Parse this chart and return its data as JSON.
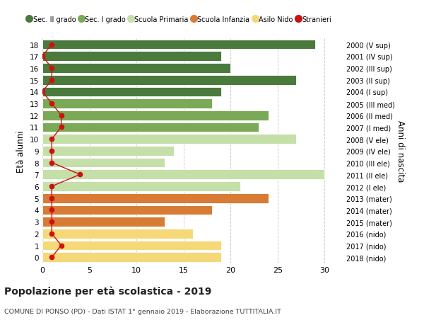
{
  "ages": [
    18,
    17,
    16,
    15,
    14,
    13,
    12,
    11,
    10,
    9,
    8,
    7,
    6,
    5,
    4,
    3,
    2,
    1,
    0
  ],
  "years": [
    "2000 (V sup)",
    "2001 (IV sup)",
    "2002 (III sup)",
    "2003 (II sup)",
    "2004 (I sup)",
    "2005 (III med)",
    "2006 (II med)",
    "2007 (I med)",
    "2008 (V ele)",
    "2009 (IV ele)",
    "2010 (III ele)",
    "2011 (II ele)",
    "2012 (I ele)",
    "2013 (mater)",
    "2014 (mater)",
    "2015 (mater)",
    "2016 (nido)",
    "2017 (nido)",
    "2018 (nido)"
  ],
  "bar_values": [
    29,
    19,
    20,
    27,
    19,
    18,
    24,
    23,
    27,
    14,
    13,
    30,
    21,
    24,
    18,
    13,
    16,
    19,
    19
  ],
  "bar_colors": [
    "#4a7a3c",
    "#4a7a3c",
    "#4a7a3c",
    "#4a7a3c",
    "#4a7a3c",
    "#7aaa55",
    "#7aaa55",
    "#7aaa55",
    "#c4dfa8",
    "#c4dfa8",
    "#c4dfa8",
    "#c4dfa8",
    "#c4dfa8",
    "#d87c35",
    "#d87c35",
    "#d87c35",
    "#f5d878",
    "#f5d878",
    "#f5d878"
  ],
  "stranieri_values": [
    1,
    0,
    1,
    1,
    0,
    1,
    2,
    2,
    1,
    1,
    1,
    4,
    1,
    1,
    1,
    1,
    1,
    2,
    1
  ],
  "legend_labels": [
    "Sec. II grado",
    "Sec. I grado",
    "Scuola Primaria",
    "Scuola Infanzia",
    "Asilo Nido",
    "Stranieri"
  ],
  "legend_colors": [
    "#4a7a3c",
    "#7aaa55",
    "#c4dfa8",
    "#d87c35",
    "#f5d878",
    "#cc1111"
  ],
  "ylabel": "Età alunni",
  "right_ylabel": "Anni di nascita",
  "title": "Popolazione per età scolastica - 2019",
  "subtitle": "COMUNE DI PONSO (PD) - Dati ISTAT 1° gennaio 2019 - Elaborazione TUTTITALIA.IT",
  "xlim": [
    0,
    32
  ],
  "stranieri_color": "#cc1111",
  "background_color": "#ffffff",
  "bar_height": 0.82
}
